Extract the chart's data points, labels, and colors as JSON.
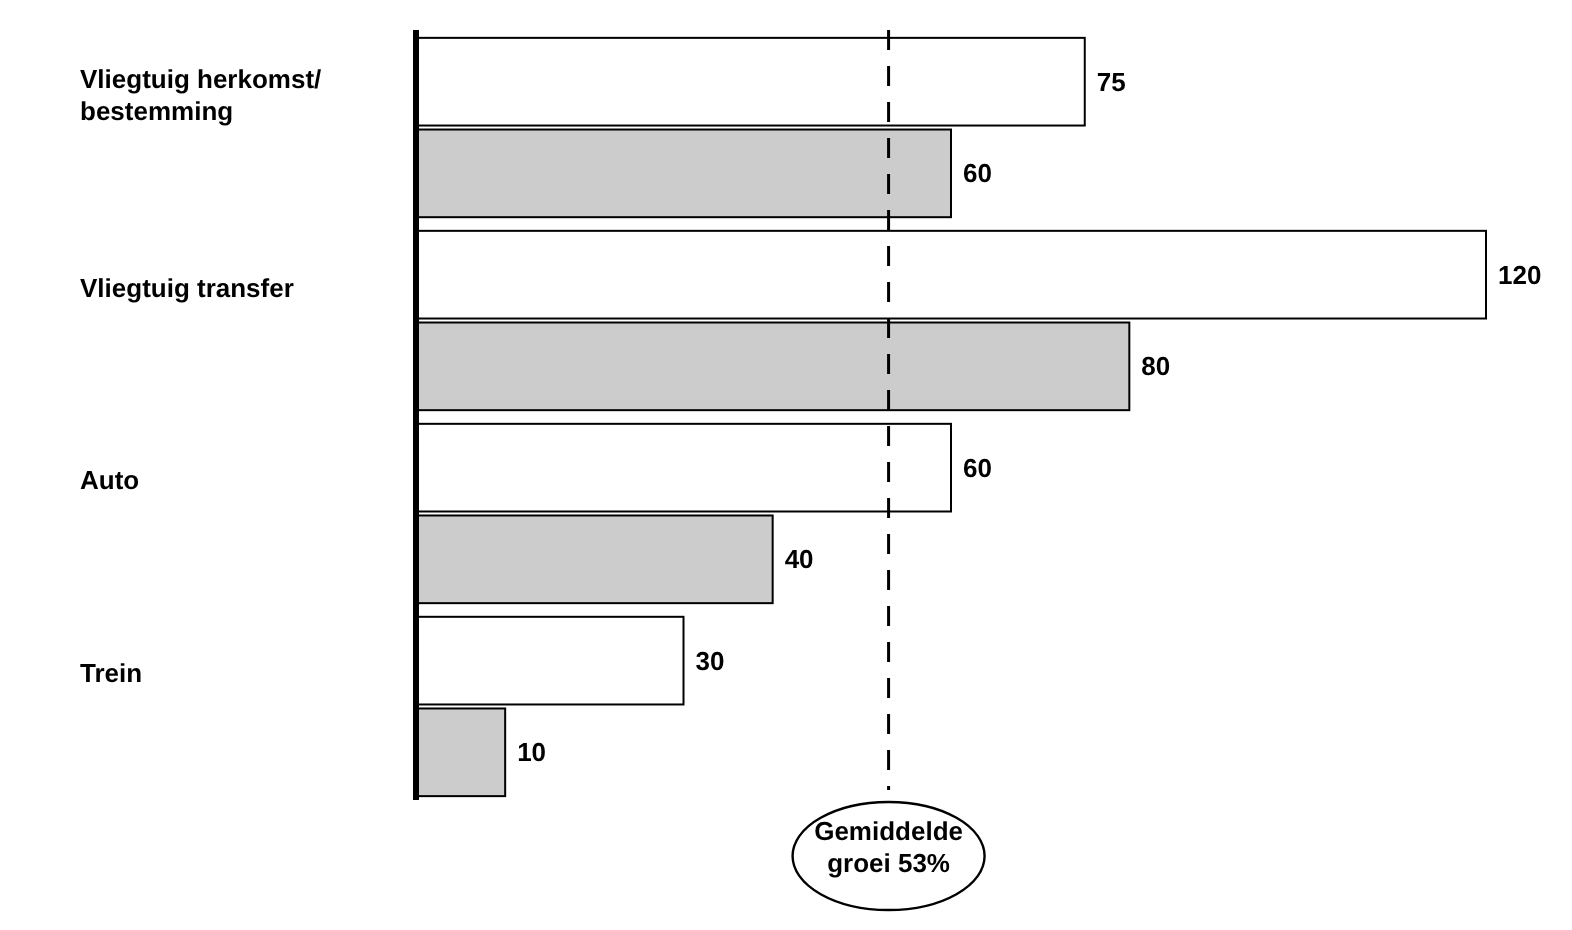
{
  "chart_data": {
    "type": "bar",
    "orientation": "horizontal",
    "categories": [
      "Vliegtuig herkomst/bestemming",
      "Vliegtuig transfer",
      "Auto",
      "Trein"
    ],
    "series": [
      {
        "color": "#ffffff",
        "values": [
          75,
          120,
          60,
          30
        ]
      },
      {
        "color": "#cccccc",
        "values": [
          60,
          80,
          40,
          10
        ]
      }
    ],
    "data_labels": true,
    "tick_labels": "y",
    "ref_lines": [
      {
        "axis": "x",
        "value": 53,
        "label": "Gemiddelde groei 53%",
        "line_style": "dashed"
      }
    ]
  }
}
